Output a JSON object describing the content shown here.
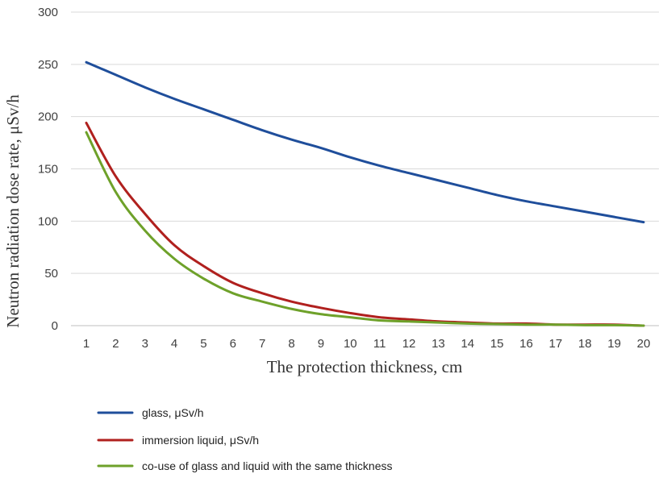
{
  "chart_data": {
    "type": "line",
    "xlabel": "The protection thickness, cm",
    "ylabel": "Neutron radiation dose rate, μSv/h",
    "ylim": [
      0,
      300
    ],
    "yticks": [
      0,
      50,
      100,
      150,
      200,
      250,
      300
    ],
    "x": [
      1,
      2,
      3,
      4,
      5,
      6,
      7,
      8,
      9,
      10,
      11,
      12,
      13,
      14,
      15,
      16,
      17,
      18,
      19,
      20
    ],
    "grid": true,
    "legend_position": "bottom",
    "series": [
      {
        "name": "glass, μSv/h",
        "color": "#1f4e9b",
        "values": [
          252,
          240,
          228,
          217,
          207,
          197,
          187,
          178,
          170,
          161,
          153,
          146,
          139,
          132,
          125,
          119,
          114,
          109,
          104,
          99
        ]
      },
      {
        "name": "immersion liquid, μSv/h",
        "color": "#b0201e",
        "values": [
          194,
          143,
          107,
          77,
          57,
          41,
          31,
          23,
          17,
          12,
          8,
          6,
          4,
          3,
          2,
          2,
          1,
          1,
          1,
          0
        ]
      },
      {
        "name": "co-use of glass and liquid with the same thickness",
        "color": "#6ea12a",
        "values": [
          185,
          128,
          91,
          64,
          45,
          31,
          23,
          16,
          11,
          8,
          5,
          4,
          3,
          2,
          1.5,
          1,
          1,
          0.5,
          0.5,
          0
        ]
      }
    ]
  }
}
